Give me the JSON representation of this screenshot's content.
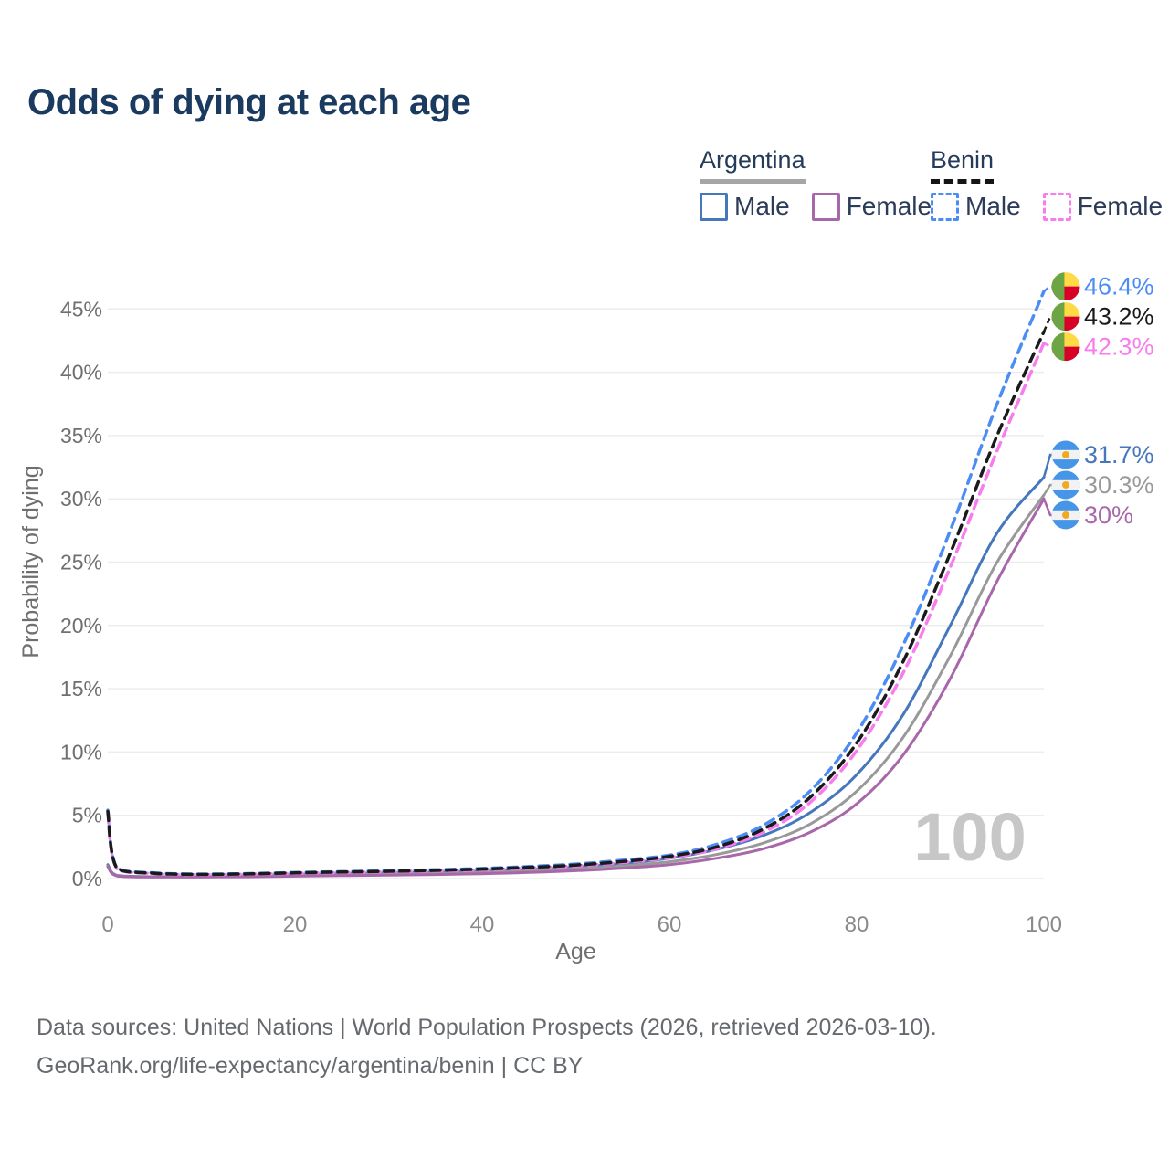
{
  "title": "Odds of dying at each age",
  "legend": {
    "groups": [
      {
        "country": "Argentina",
        "line_style": "solid",
        "line_color": "#a6a6a6",
        "items": [
          {
            "label": "Male",
            "color": "#4577bd",
            "dash": false
          },
          {
            "label": "Female",
            "color": "#a867aa",
            "dash": false
          }
        ]
      },
      {
        "country": "Benin",
        "line_style": "dashed",
        "line_color": "#151515",
        "items": [
          {
            "label": "Male",
            "color": "#4b8cf5",
            "dash": true
          },
          {
            "label": "Female",
            "color": "#f87cee",
            "dash": true
          }
        ]
      }
    ]
  },
  "chart_data": {
    "type": "line",
    "title": "Odds of dying at each age",
    "xlabel": "Age",
    "ylabel": "Probability of dying",
    "xlim": [
      0,
      100
    ],
    "ylim": [
      0,
      47
    ],
    "grid": "horizontal",
    "legend_position": "top-right",
    "watermark": "100",
    "x_ticks": [
      {
        "value": 0,
        "label": "0"
      },
      {
        "value": 20,
        "label": "20"
      },
      {
        "value": 40,
        "label": "40"
      },
      {
        "value": 60,
        "label": "60"
      },
      {
        "value": 80,
        "label": "80"
      },
      {
        "value": 100,
        "label": "100"
      }
    ],
    "y_ticks": [
      {
        "value": 0,
        "label": "0%"
      },
      {
        "value": 5,
        "label": "5%"
      },
      {
        "value": 10,
        "label": "10%"
      },
      {
        "value": 15,
        "label": "15%"
      },
      {
        "value": 20,
        "label": "20%"
      },
      {
        "value": 25,
        "label": "25%"
      },
      {
        "value": 30,
        "label": "30%"
      },
      {
        "value": 35,
        "label": "35%"
      },
      {
        "value": 40,
        "label": "40%"
      },
      {
        "value": 45,
        "label": "45%"
      }
    ],
    "ages": [
      0,
      1,
      5,
      10,
      15,
      20,
      25,
      30,
      35,
      40,
      45,
      50,
      55,
      60,
      65,
      70,
      75,
      80,
      85,
      90,
      95,
      100
    ],
    "series": [
      {
        "id": "benin-male",
        "country": "Benin",
        "sex": "Male",
        "color": "#4b8cf5",
        "dashed": true,
        "end_label": "46.4%",
        "values": [
          5.4,
          0.85,
          0.45,
          0.35,
          0.4,
          0.48,
          0.55,
          0.62,
          0.7,
          0.8,
          0.95,
          1.15,
          1.45,
          1.85,
          2.7,
          4.2,
          6.9,
          11.5,
          18.5,
          27.5,
          37.5,
          46.4
        ]
      },
      {
        "id": "benin-both",
        "country": "Benin",
        "sex": "Both sexes",
        "color": "#1a1a1a",
        "dashed": true,
        "end_label": "43.2%",
        "values": [
          5.3,
          0.8,
          0.42,
          0.33,
          0.37,
          0.45,
          0.52,
          0.58,
          0.65,
          0.75,
          0.88,
          1.07,
          1.35,
          1.75,
          2.5,
          3.9,
          6.4,
          10.7,
          17.2,
          25.7,
          35.0,
          43.2
        ]
      },
      {
        "id": "benin-female",
        "country": "Benin",
        "sex": "Female",
        "color": "#f87cee",
        "dashed": true,
        "end_label": "42.3%",
        "values": [
          5.1,
          0.76,
          0.4,
          0.31,
          0.35,
          0.42,
          0.48,
          0.54,
          0.61,
          0.7,
          0.82,
          1.0,
          1.27,
          1.65,
          2.35,
          3.65,
          6.0,
          10.1,
          16.3,
          24.6,
          33.8,
          42.3
        ]
      },
      {
        "id": "argentina-male",
        "country": "Argentina",
        "sex": "Male",
        "color": "#4577bd",
        "dashed": false,
        "end_label": "31.7%",
        "values": [
          1.1,
          0.25,
          0.15,
          0.15,
          0.22,
          0.32,
          0.38,
          0.44,
          0.5,
          0.58,
          0.72,
          0.92,
          1.2,
          1.6,
          2.3,
          3.4,
          5.2,
          8.2,
          13.0,
          20.0,
          27.3,
          31.7
        ]
      },
      {
        "id": "argentina-both",
        "country": "Argentina",
        "sex": "Both sexes",
        "color": "#999999",
        "dashed": false,
        "end_label": "30.3%",
        "values": [
          1.0,
          0.22,
          0.13,
          0.13,
          0.18,
          0.26,
          0.31,
          0.36,
          0.41,
          0.48,
          0.6,
          0.77,
          1.0,
          1.33,
          1.9,
          2.8,
          4.3,
          6.9,
          11.2,
          17.6,
          25.0,
          30.3
        ]
      },
      {
        "id": "argentina-female",
        "country": "Argentina",
        "sex": "Female",
        "color": "#a867aa",
        "dashed": false,
        "end_label": "30%",
        "values": [
          0.95,
          0.2,
          0.12,
          0.12,
          0.14,
          0.19,
          0.23,
          0.27,
          0.32,
          0.38,
          0.48,
          0.62,
          0.82,
          1.1,
          1.6,
          2.35,
          3.65,
          5.9,
          9.8,
          15.8,
          23.5,
          30.0
        ]
      }
    ],
    "flags": {
      "benin": {
        "green": "#6da544",
        "yellow": "#ffda44",
        "red": "#d80027"
      },
      "argentina": {
        "blue": "#4695e7",
        "white": "#f2f2f2",
        "sun": "#f2a922"
      }
    }
  },
  "footer": {
    "line1": "Data sources: United Nations | World Population Prospects (2026, retrieved 2026-03-10).",
    "line2": "GeoRank.org/life-expectancy/argentina/benin | CC BY"
  }
}
